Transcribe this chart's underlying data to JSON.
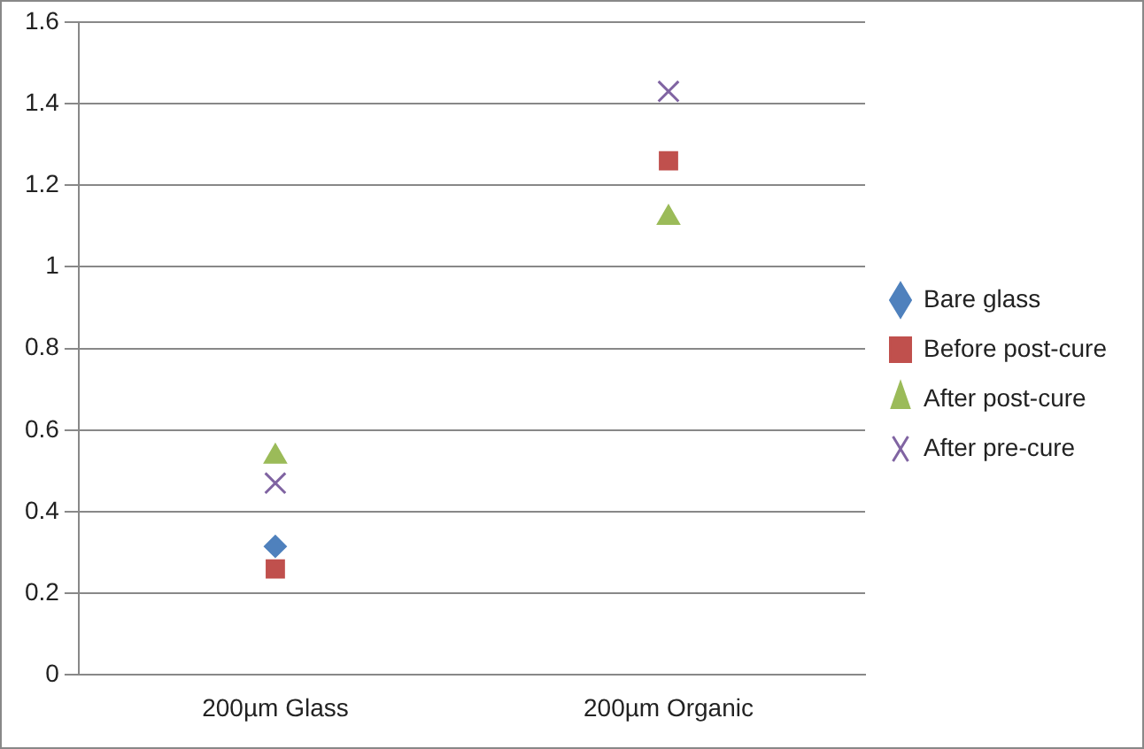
{
  "chart_data": {
    "type": "scatter",
    "categories": [
      "200µm Glass",
      "200µm Organic"
    ],
    "series": [
      {
        "name": "Bare glass",
        "color": "#4f81bd",
        "marker": "diamond",
        "values": [
          0.315,
          null
        ]
      },
      {
        "name": "Before post-cure",
        "color": "#c0504d",
        "marker": "square",
        "values": [
          0.26,
          1.26
        ]
      },
      {
        "name": "After post-cure",
        "color": "#9bbb59",
        "marker": "triangle",
        "values": [
          0.535,
          1.12
        ]
      },
      {
        "name": "After pre-cure",
        "color": "#8064a2",
        "marker": "cross",
        "values": [
          0.47,
          1.43
        ]
      }
    ],
    "ylim": [
      0,
      1.6
    ],
    "yticks": [
      0,
      0.2,
      0.4,
      0.6,
      0.8,
      1,
      1.2,
      1.4,
      1.6
    ],
    "grid": "y",
    "legend": "right"
  }
}
